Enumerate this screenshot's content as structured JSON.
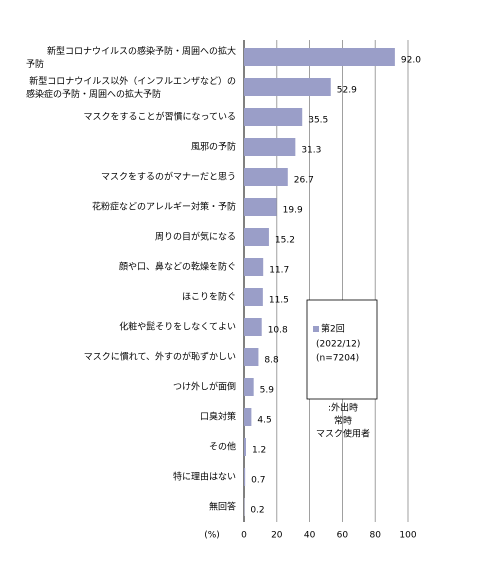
{
  "chart_data": {
    "type": "bar",
    "orientation": "horizontal",
    "categories": [
      "新型コロナウイルスの感染予防・周囲への拡大\n予防",
      "新型コロナウイルス以外（インフルエンザなど）の\n感染症の予防・周囲への拡大予防",
      "マスクをすることが習慣になっている",
      "風邪の予防",
      "マスクをするのがマナーだと思う",
      "花粉症などのアレルギー対策・予防",
      "周りの目が気になる",
      "顔や口、鼻などの乾燥を防ぐ",
      "ほこりを防ぐ",
      "化粧や髭そりをしなくてよい",
      "マスクに慣れて、外すのが恥ずかしい",
      "つけ外しが面倒",
      "口臭対策",
      "その他",
      "特に理由はない",
      "無回答"
    ],
    "series": [
      {
        "name": "第2回",
        "color": "#9a9ec8",
        "values": [
          92.0,
          52.9,
          35.5,
          31.3,
          26.7,
          19.9,
          15.2,
          11.7,
          11.5,
          10.8,
          8.8,
          5.9,
          4.5,
          1.2,
          0.7,
          0.2
        ],
        "value_labels": [
          "92.0",
          "52.9",
          "35.5",
          "31.3",
          "26.7",
          "19.9",
          "15.2",
          "11.7",
          "11.5",
          "10.8",
          "8.8",
          "5.9",
          "4.5",
          "1.2",
          "0.7",
          "0.2"
        ]
      }
    ],
    "legend_notes": [
      "(2022/12)",
      "(n=7204)"
    ],
    "annotation": [
      ":外出時",
      "常時",
      "マスク使用者"
    ],
    "xlabel": "(%)",
    "xlim": [
      0,
      100
    ],
    "xticks": [
      0,
      20,
      40,
      60,
      80,
      100
    ],
    "grid": true
  }
}
